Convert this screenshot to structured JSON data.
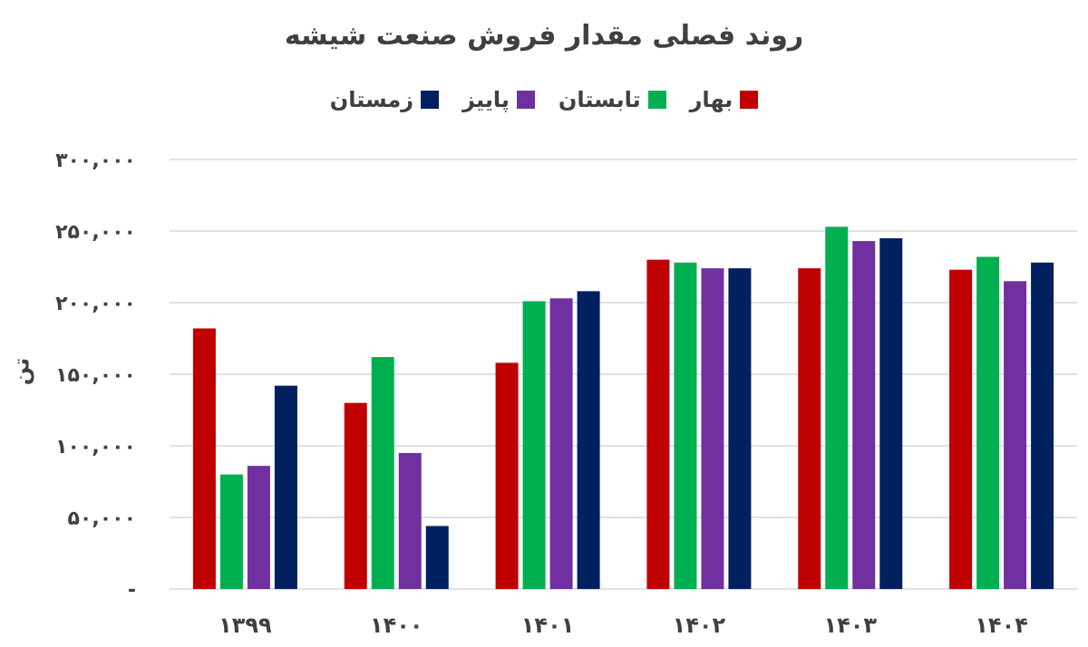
{
  "chart_data": {
    "type": "bar",
    "title": "روند فصلی مقدار فروش صنعت شیشه",
    "ylabel": "تن",
    "xlabel": "",
    "categories": [
      "۱۳۹۹",
      "۱۴۰۰",
      "۱۴۰۱",
      "۱۴۰۲",
      "۱۴۰۳",
      "۱۴۰۴"
    ],
    "series": [
      {
        "name": "بهار",
        "color": "#c00000",
        "values": [
          182000,
          130000,
          158000,
          230000,
          224000,
          223000
        ]
      },
      {
        "name": "تابستان",
        "color": "#00b050",
        "values": [
          80000,
          162000,
          201000,
          228000,
          253000,
          232000
        ]
      },
      {
        "name": "پاییز",
        "color": "#7030a0",
        "values": [
          86000,
          95000,
          203000,
          224000,
          243000,
          215000
        ]
      },
      {
        "name": "زمستان",
        "color": "#002060",
        "values": [
          142000,
          44000,
          208000,
          224000,
          245000,
          228000
        ]
      }
    ],
    "ylim": [
      0,
      300000
    ],
    "yticks": [
      0,
      50000,
      100000,
      150000,
      200000,
      250000,
      300000
    ],
    "ytick_labels": [
      "-",
      "۵۰,۰۰۰",
      "۱۰۰,۰۰۰",
      "۱۵۰,۰۰۰",
      "۲۰۰,۰۰۰",
      "۲۵۰,۰۰۰",
      "۳۰۰,۰۰۰"
    ],
    "grid": true,
    "legend_position": "top-center"
  }
}
